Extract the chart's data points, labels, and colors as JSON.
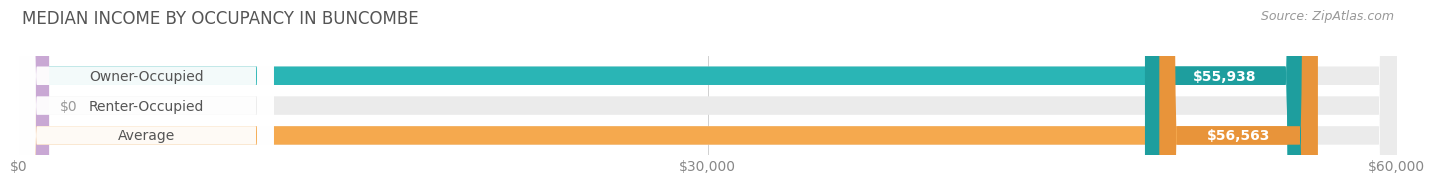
{
  "title": "MEDIAN INCOME BY OCCUPANCY IN BUNCOMBE",
  "source": "Source: ZipAtlas.com",
  "categories": [
    "Owner-Occupied",
    "Renter-Occupied",
    "Average"
  ],
  "values": [
    55938,
    0,
    56563
  ],
  "bar_colors": [
    "#2ab5b5",
    "#c9a8d4",
    "#f5a94e"
  ],
  "value_pill_colors": [
    "#1e9e9e",
    "#b090c0",
    "#e8943a"
  ],
  "bar_bg_color": "#ebebeb",
  "label_bg_color": "#ffffff",
  "x_max": 60000,
  "x_ticks": [
    0,
    30000,
    60000
  ],
  "x_tick_labels": [
    "$0",
    "$30,000",
    "$60,000"
  ],
  "value_labels": [
    "$55,938",
    "$0",
    "$56,563"
  ],
  "bar_height": 0.62,
  "title_fontsize": 12,
  "source_fontsize": 9,
  "label_fontsize": 10,
  "value_fontsize": 10,
  "tick_fontsize": 10,
  "grid_color": "#d0d0d0",
  "title_color": "#555555",
  "source_color": "#999999",
  "label_color": "#555555",
  "value_label_color_inside": "#ffffff",
  "value_label_color_outside": "#999999"
}
